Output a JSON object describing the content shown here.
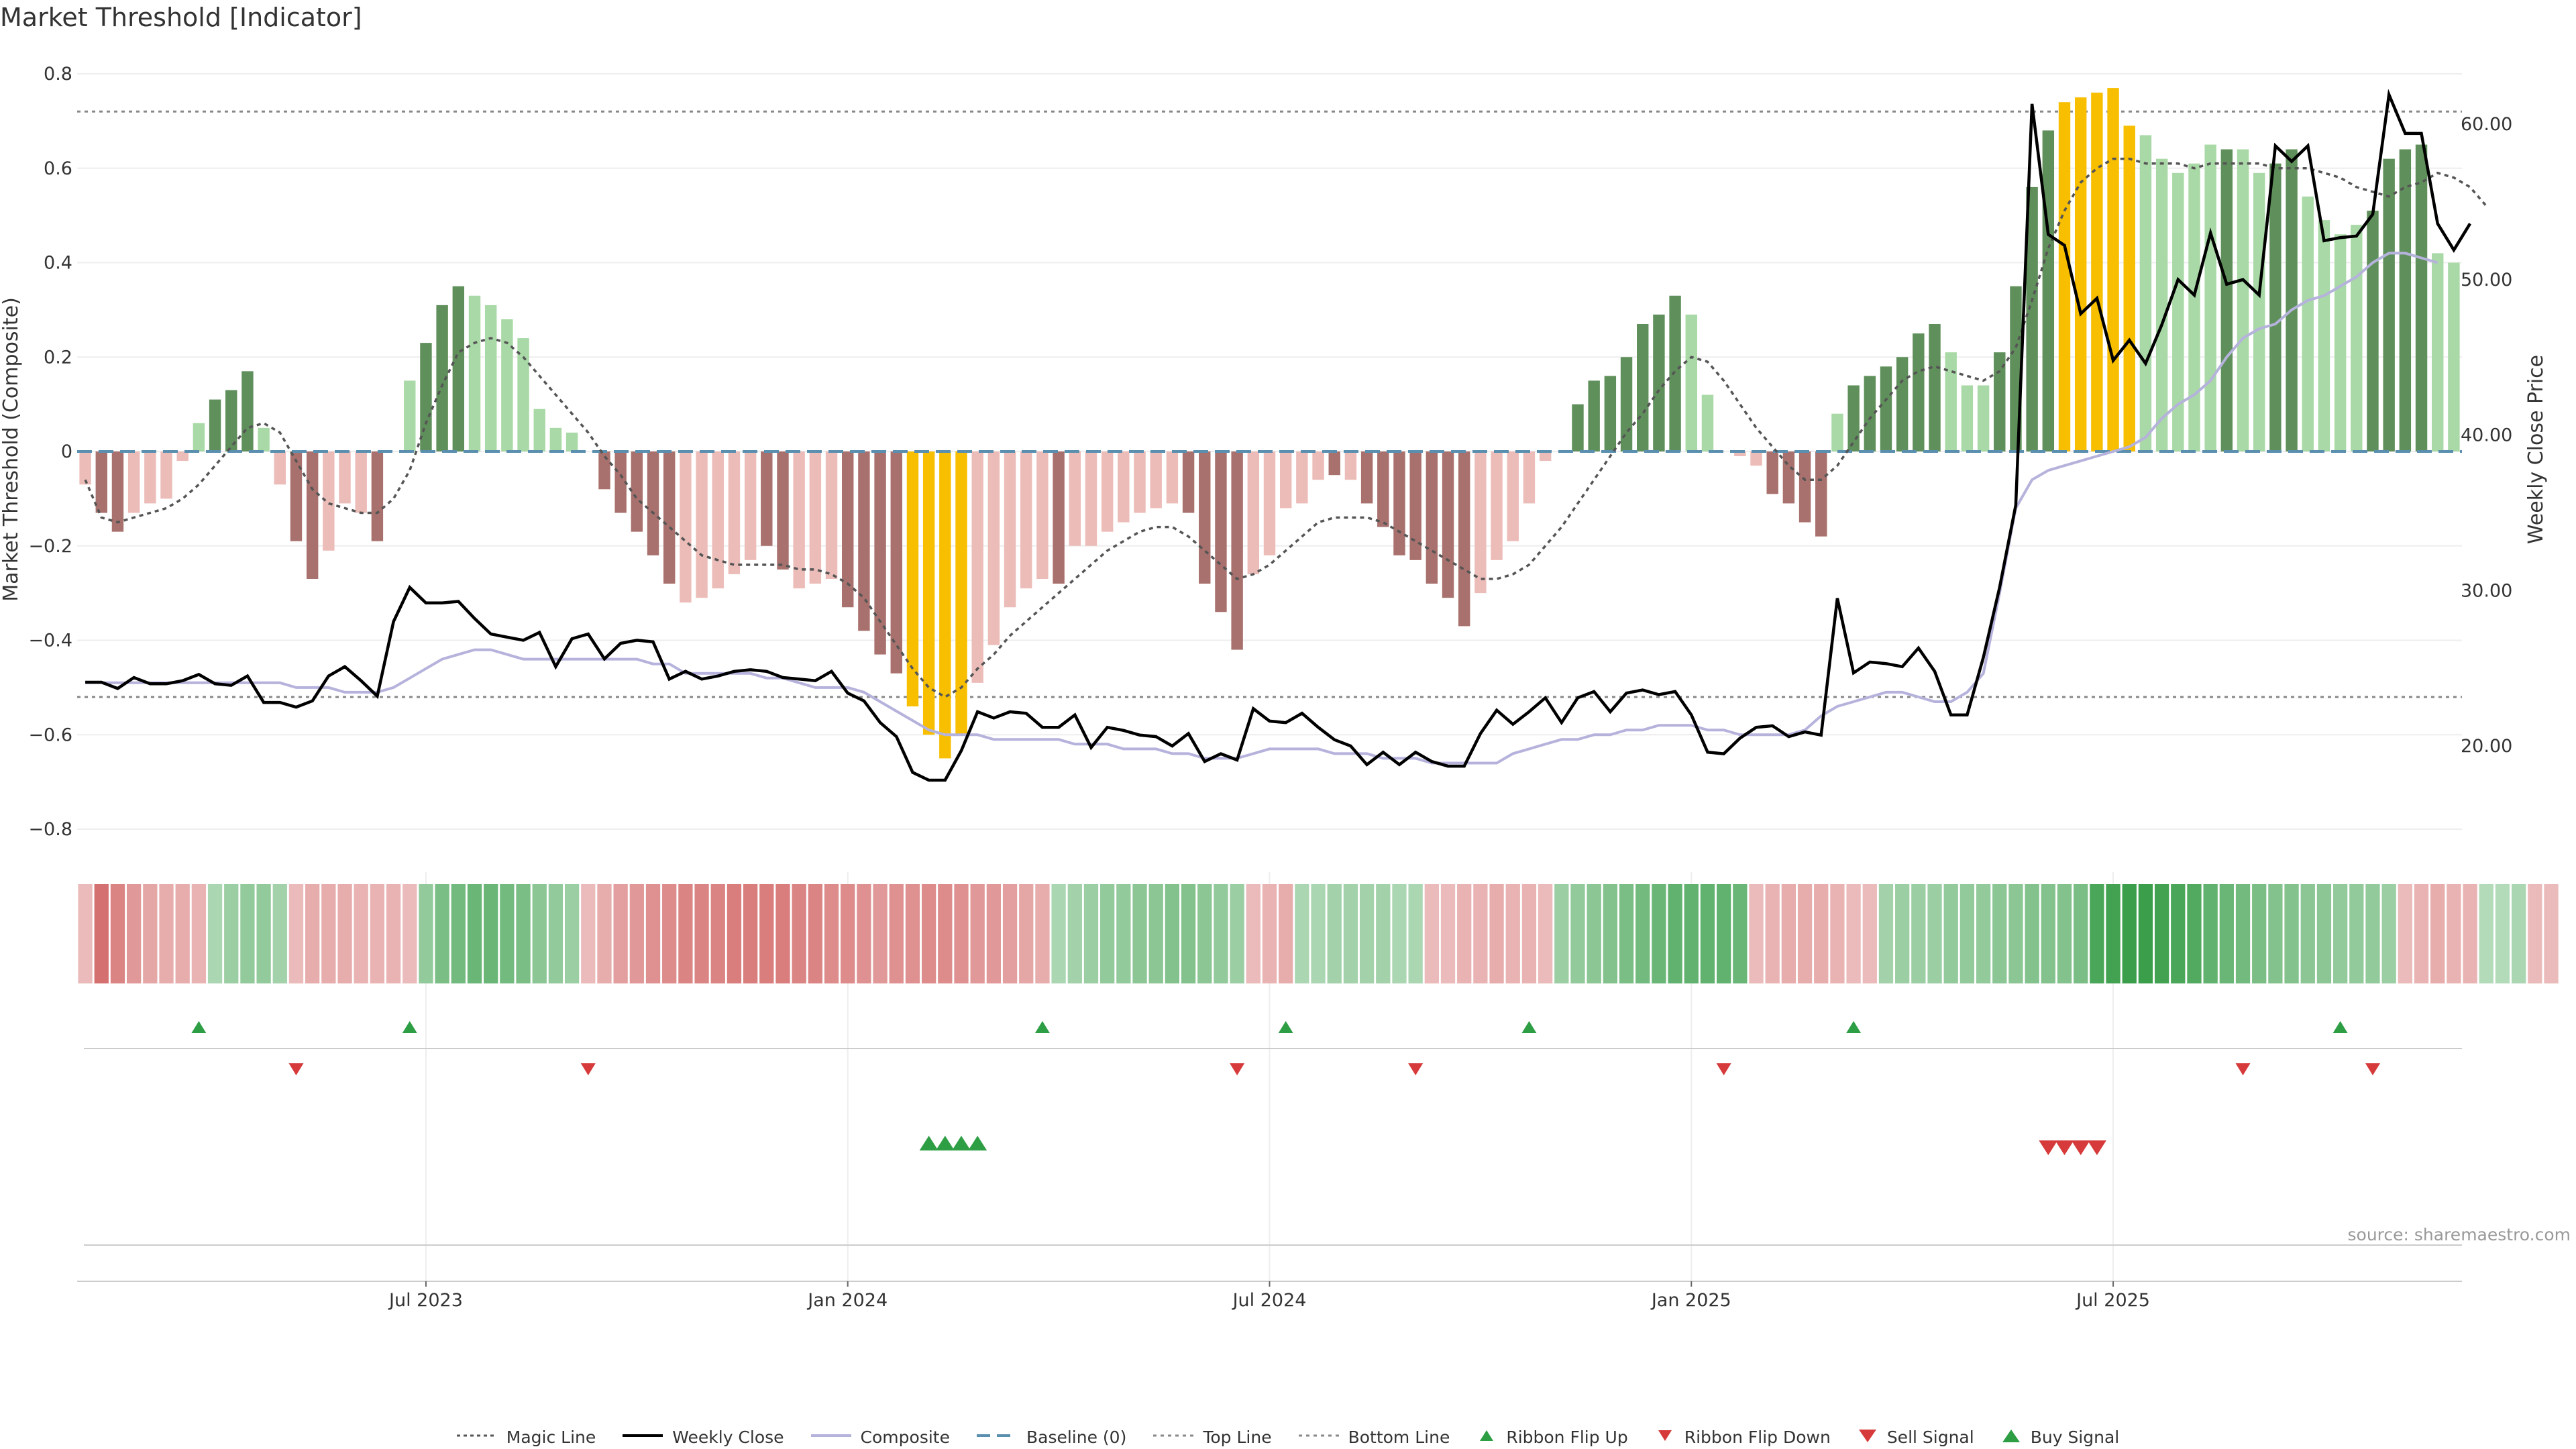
{
  "chart_data": {
    "type": "bar",
    "title": "Market Threshold [Indicator]",
    "source": "source: sharemaestro.com",
    "ylabel_left": "Market Threshold (Composite)",
    "ylabel_right": "Weekly Close Price",
    "ylim_left": [
      -0.84,
      0.8
    ],
    "ylim_right": [
      14.9,
      64.8
    ],
    "yticks_left": [
      "−0.8",
      "−0.6",
      "−0.4",
      "−0.2",
      "0",
      "0.2",
      "0.4",
      "0.6",
      "0.8"
    ],
    "yticks_left_values": [
      -0.8,
      -0.6,
      -0.4,
      -0.2,
      0,
      0.2,
      0.4,
      0.6,
      0.8
    ],
    "yticks_right": [
      "20.00",
      "30.00",
      "40.00",
      "50.00",
      "60.00"
    ],
    "yticks_right_values": [
      20,
      30,
      40,
      50,
      60
    ],
    "xticks": [
      {
        "label": "Jul 2023",
        "week": 21
      },
      {
        "label": "Jan 2024",
        "week": 47
      },
      {
        "label": "Jul 2024",
        "week": 73
      },
      {
        "label": "Jan 2025",
        "week": 99
      },
      {
        "label": "Jul 2025",
        "week": 125
      }
    ],
    "top_line": 0.72,
    "bottom_line": -0.52,
    "baseline": 0,
    "composite_bars": [
      -0.07,
      -0.13,
      -0.17,
      -0.13,
      -0.11,
      -0.1,
      -0.02,
      0.06,
      0.11,
      0.13,
      0.17,
      0.05,
      -0.07,
      -0.19,
      -0.27,
      -0.21,
      -0.11,
      -0.13,
      -0.19,
      0.0,
      0.15,
      0.23,
      0.31,
      0.35,
      0.33,
      0.31,
      0.28,
      0.24,
      0.09,
      0.05,
      0.04,
      0.0,
      -0.08,
      -0.13,
      -0.17,
      -0.22,
      -0.28,
      -0.32,
      -0.31,
      -0.29,
      -0.26,
      -0.23,
      -0.2,
      -0.25,
      -0.29,
      -0.28,
      -0.27,
      -0.33,
      -0.38,
      -0.43,
      -0.47,
      -0.54,
      -0.6,
      -0.65,
      -0.6,
      -0.49,
      -0.41,
      -0.33,
      -0.29,
      -0.27,
      -0.28,
      -0.2,
      -0.2,
      -0.17,
      -0.15,
      -0.13,
      -0.12,
      -0.11,
      -0.13,
      -0.28,
      -0.34,
      -0.42,
      -0.26,
      -0.22,
      -0.12,
      -0.11,
      -0.06,
      -0.05,
      -0.06,
      -0.11,
      -0.16,
      -0.22,
      -0.23,
      -0.28,
      -0.31,
      -0.37,
      -0.3,
      -0.23,
      -0.19,
      -0.11,
      -0.02,
      0.0,
      0.1,
      0.15,
      0.16,
      0.2,
      0.27,
      0.29,
      0.33,
      0.29,
      0.12,
      0.0,
      -0.01,
      -0.03,
      -0.09,
      -0.11,
      -0.15,
      -0.18,
      0.08,
      0.14,
      0.16,
      0.18,
      0.2,
      0.25,
      0.27,
      0.21,
      0.14,
      0.14,
      0.21,
      0.35,
      0.56,
      0.68,
      0.74,
      0.75,
      0.76,
      0.77,
      0.69,
      0.67,
      0.62,
      0.59,
      0.61,
      0.65,
      0.64,
      0.64,
      0.59,
      0.61,
      0.64,
      0.54,
      0.49,
      0.46,
      0.48,
      0.51,
      0.62,
      0.64,
      0.65,
      0.42,
      0.4
    ],
    "bar_states": [
      1,
      2,
      2,
      1,
      1,
      1,
      1,
      3,
      4,
      4,
      4,
      3,
      1,
      2,
      2,
      1,
      1,
      1,
      2,
      0,
      3,
      4,
      4,
      4,
      3,
      3,
      3,
      3,
      3,
      3,
      3,
      0,
      2,
      2,
      2,
      2,
      2,
      1,
      1,
      1,
      1,
      1,
      2,
      2,
      1,
      1,
      1,
      2,
      2,
      2,
      2,
      5,
      5,
      5,
      5,
      1,
      1,
      1,
      1,
      1,
      2,
      1,
      1,
      1,
      1,
      1,
      1,
      1,
      2,
      2,
      2,
      2,
      1,
      1,
      1,
      1,
      1,
      2,
      1,
      2,
      2,
      2,
      2,
      2,
      2,
      2,
      1,
      1,
      1,
      1,
      1,
      0,
      4,
      4,
      4,
      4,
      4,
      4,
      4,
      3,
      3,
      0,
      1,
      1,
      2,
      2,
      2,
      2,
      3,
      4,
      4,
      4,
      4,
      4,
      4,
      3,
      3,
      3,
      4,
      4,
      4,
      4,
      5,
      5,
      5,
      5,
      5,
      3,
      3,
      3,
      3,
      3,
      4,
      3,
      3,
      4,
      4,
      3,
      3,
      3,
      3,
      4,
      4,
      4,
      4,
      3,
      3
    ],
    "magic_line": [
      -0.06,
      -0.14,
      -0.15,
      -0.14,
      -0.13,
      -0.12,
      -0.1,
      -0.07,
      -0.03,
      0.01,
      0.05,
      0.06,
      0.04,
      -0.02,
      -0.08,
      -0.11,
      -0.12,
      -0.13,
      -0.13,
      -0.1,
      -0.04,
      0.06,
      0.14,
      0.21,
      0.23,
      0.24,
      0.23,
      0.2,
      0.16,
      0.12,
      0.08,
      0.04,
      -0.01,
      -0.05,
      -0.1,
      -0.13,
      -0.16,
      -0.19,
      -0.22,
      -0.23,
      -0.24,
      -0.24,
      -0.24,
      -0.24,
      -0.25,
      -0.25,
      -0.26,
      -0.28,
      -0.31,
      -0.36,
      -0.41,
      -0.46,
      -0.5,
      -0.52,
      -0.5,
      -0.46,
      -0.43,
      -0.39,
      -0.36,
      -0.33,
      -0.3,
      -0.27,
      -0.24,
      -0.21,
      -0.19,
      -0.17,
      -0.16,
      -0.16,
      -0.18,
      -0.21,
      -0.24,
      -0.27,
      -0.26,
      -0.24,
      -0.21,
      -0.18,
      -0.15,
      -0.14,
      -0.14,
      -0.14,
      -0.15,
      -0.17,
      -0.19,
      -0.21,
      -0.23,
      -0.25,
      -0.27,
      -0.27,
      -0.26,
      -0.24,
      -0.2,
      -0.16,
      -0.11,
      -0.06,
      -0.01,
      0.04,
      0.08,
      0.13,
      0.17,
      0.2,
      0.19,
      0.15,
      0.1,
      0.05,
      0.01,
      -0.03,
      -0.06,
      -0.06,
      -0.03,
      0.02,
      0.07,
      0.11,
      0.15,
      0.17,
      0.18,
      0.17,
      0.16,
      0.15,
      0.17,
      0.22,
      0.32,
      0.43,
      0.51,
      0.57,
      0.6,
      0.62,
      0.62,
      0.61,
      0.61,
      0.61,
      0.6,
      0.61,
      0.61,
      0.61,
      0.61,
      0.6,
      0.6,
      0.6,
      0.59,
      0.58,
      0.56,
      0.55,
      0.54,
      0.56,
      0.57,
      0.59,
      0.58,
      0.56,
      0.52
    ],
    "composite_line": [
      -0.49,
      -0.49,
      -0.49,
      -0.49,
      -0.49,
      -0.49,
      -0.49,
      -0.49,
      -0.49,
      -0.49,
      -0.49,
      -0.49,
      -0.49,
      -0.5,
      -0.5,
      -0.5,
      -0.51,
      -0.51,
      -0.51,
      -0.5,
      -0.48,
      -0.46,
      -0.44,
      -0.43,
      -0.42,
      -0.42,
      -0.43,
      -0.44,
      -0.44,
      -0.44,
      -0.44,
      -0.44,
      -0.44,
      -0.44,
      -0.44,
      -0.45,
      -0.45,
      -0.47,
      -0.47,
      -0.47,
      -0.47,
      -0.47,
      -0.48,
      -0.48,
      -0.49,
      -0.5,
      -0.5,
      -0.5,
      -0.51,
      -0.53,
      -0.55,
      -0.57,
      -0.59,
      -0.6,
      -0.6,
      -0.6,
      -0.61,
      -0.61,
      -0.61,
      -0.61,
      -0.61,
      -0.62,
      -0.62,
      -0.62,
      -0.63,
      -0.63,
      -0.63,
      -0.64,
      -0.64,
      -0.65,
      -0.65,
      -0.65,
      -0.64,
      -0.63,
      -0.63,
      -0.63,
      -0.63,
      -0.64,
      -0.64,
      -0.64,
      -0.65,
      -0.65,
      -0.65,
      -0.66,
      -0.66,
      -0.66,
      -0.66,
      -0.66,
      -0.64,
      -0.63,
      -0.62,
      -0.61,
      -0.61,
      -0.6,
      -0.6,
      -0.59,
      -0.59,
      -0.58,
      -0.58,
      -0.58,
      -0.59,
      -0.59,
      -0.6,
      -0.6,
      -0.6,
      -0.6,
      -0.59,
      -0.56,
      -0.54,
      -0.53,
      -0.52,
      -0.51,
      -0.51,
      -0.52,
      -0.53,
      -0.53,
      -0.51,
      -0.47,
      -0.3,
      -0.12,
      -0.06,
      -0.04,
      -0.03,
      -0.02,
      -0.01,
      -0.0,
      0.01,
      0.03,
      0.07,
      0.1,
      0.12,
      0.15,
      0.2,
      0.24,
      0.26,
      0.27,
      0.3,
      0.32,
      0.33,
      0.35,
      0.37,
      0.4,
      0.42,
      0.42,
      0.41,
      0.4
    ],
    "weekly_close": [
      24.1,
      24.1,
      23.7,
      24.4,
      24.0,
      24.0,
      24.2,
      24.6,
      24.0,
      23.9,
      24.5,
      22.8,
      22.8,
      22.5,
      22.9,
      24.5,
      25.1,
      24.2,
      23.2,
      28.0,
      30.2,
      29.2,
      29.2,
      29.3,
      28.2,
      27.2,
      27.0,
      26.8,
      27.3,
      25.1,
      26.9,
      27.2,
      25.6,
      26.6,
      26.8,
      26.7,
      24.3,
      24.8,
      24.3,
      24.5,
      24.8,
      24.9,
      24.8,
      24.4,
      24.3,
      24.2,
      24.8,
      23.4,
      22.9,
      21.5,
      20.6,
      18.3,
      17.8,
      17.8,
      19.7,
      22.2,
      21.8,
      22.2,
      22.1,
      21.2,
      21.2,
      22.0,
      19.9,
      21.2,
      21.0,
      20.7,
      20.6,
      20.0,
      20.8,
      19.0,
      19.5,
      19.1,
      22.4,
      21.6,
      21.5,
      22.1,
      21.2,
      20.4,
      20.0,
      18.8,
      19.6,
      18.8,
      19.6,
      19.0,
      18.7,
      18.7,
      20.8,
      22.3,
      21.4,
      22.2,
      23.1,
      21.5,
      23.1,
      23.5,
      22.2,
      23.4,
      23.6,
      23.3,
      23.5,
      22.0,
      19.6,
      19.5,
      20.5,
      21.2,
      21.3,
      20.6,
      20.9,
      20.7,
      29.5,
      24.7,
      25.4,
      25.3,
      25.1,
      26.3,
      24.8,
      22.0,
      22.0,
      25.7,
      30.2,
      35.5,
      61.3,
      52.9,
      52.2,
      47.8,
      48.8,
      44.8,
      46.1,
      44.6,
      47.1,
      50.0,
      49.0,
      53.0,
      49.7,
      50.0,
      49.0,
      58.6,
      57.6,
      58.6,
      52.5,
      52.7,
      52.8,
      54.2,
      61.9,
      59.4,
      59.4,
      53.6,
      51.9,
      53.6
    ],
    "ribbon": [
      -0.3,
      -0.85,
      -0.7,
      -0.55,
      -0.45,
      -0.4,
      -0.4,
      -0.35,
      0.3,
      0.4,
      0.45,
      0.45,
      0.35,
      -0.3,
      -0.4,
      -0.4,
      -0.4,
      -0.35,
      -0.35,
      -0.35,
      -0.3,
      0.45,
      0.6,
      0.65,
      0.7,
      0.7,
      0.65,
      0.6,
      0.5,
      0.45,
      0.4,
      -0.3,
      -0.4,
      -0.5,
      -0.55,
      -0.6,
      -0.65,
      -0.7,
      -0.7,
      -0.7,
      -0.75,
      -0.75,
      -0.75,
      -0.75,
      -0.7,
      -0.7,
      -0.65,
      -0.65,
      -0.6,
      -0.55,
      -0.6,
      -0.6,
      -0.65,
      -0.65,
      -0.6,
      -0.55,
      -0.55,
      -0.5,
      -0.45,
      -0.4,
      0.3,
      0.35,
      0.4,
      0.45,
      0.45,
      0.5,
      0.5,
      0.55,
      0.55,
      0.5,
      0.45,
      0.4,
      -0.3,
      -0.35,
      -0.4,
      0.3,
      0.3,
      0.35,
      0.35,
      0.35,
      0.35,
      0.3,
      0.3,
      -0.3,
      -0.3,
      -0.35,
      -0.35,
      -0.4,
      -0.35,
      -0.35,
      -0.3,
      0.4,
      0.45,
      0.5,
      0.55,
      0.6,
      0.65,
      0.7,
      0.75,
      0.75,
      0.75,
      0.75,
      0.7,
      -0.3,
      -0.35,
      -0.4,
      -0.4,
      -0.4,
      -0.35,
      -0.3,
      -0.3,
      0.35,
      0.4,
      0.4,
      0.4,
      0.45,
      0.45,
      0.45,
      0.5,
      0.5,
      0.55,
      0.55,
      0.55,
      0.6,
      0.9,
      0.95,
      1.0,
      1.0,
      0.95,
      0.9,
      0.85,
      0.75,
      0.7,
      0.65,
      0.6,
      0.55,
      0.55,
      0.5,
      0.5,
      0.45,
      0.45,
      0.45,
      0.4,
      -0.3,
      -0.35,
      -0.4,
      -0.35,
      -0.35,
      0.25,
      0.25,
      0.3,
      -0.3,
      -0.3
    ],
    "ribbon_flip_up_weeks": [
      7,
      20,
      59,
      74,
      89,
      109,
      139
    ],
    "ribbon_flip_down_weeks": [
      13,
      31,
      71,
      82,
      101,
      133,
      141
    ],
    "buy_signal_weeks": [
      52,
      53,
      54,
      55
    ],
    "sell_signal_weeks": [
      121,
      122,
      123,
      124
    ],
    "legend": [
      {
        "key": "magic",
        "label": "Magic Line"
      },
      {
        "key": "close",
        "label": "Weekly Close"
      },
      {
        "key": "composite",
        "label": "Composite"
      },
      {
        "key": "baseline",
        "label": "Baseline (0)"
      },
      {
        "key": "top",
        "label": "Top Line"
      },
      {
        "key": "bottom",
        "label": "Bottom Line"
      },
      {
        "key": "flipup",
        "label": "Ribbon Flip Up"
      },
      {
        "key": "flipdown",
        "label": "Ribbon Flip Down"
      },
      {
        "key": "sell",
        "label": "Sell Signal"
      },
      {
        "key": "buy",
        "label": "Buy Signal"
      }
    ],
    "legend_position": "bottom-center",
    "grid": true
  },
  "colors": {
    "bar_neg_light": "#ecbcb8",
    "bar_neg_dark": "#a8716d",
    "bar_pos_light": "#a9d9a6",
    "bar_pos_dark": "#5f8f5a",
    "bar_extreme": "#f7bf00",
    "weekly_close": "#000000",
    "composite_line": "#b5b2dc",
    "baseline": "#5b8fb0",
    "guide_line": "#888888",
    "buy": "#2e9e45",
    "sell": "#d63a3a",
    "ribbon_green": "#3a9e4a",
    "ribbon_red": "#cf5c5c"
  }
}
